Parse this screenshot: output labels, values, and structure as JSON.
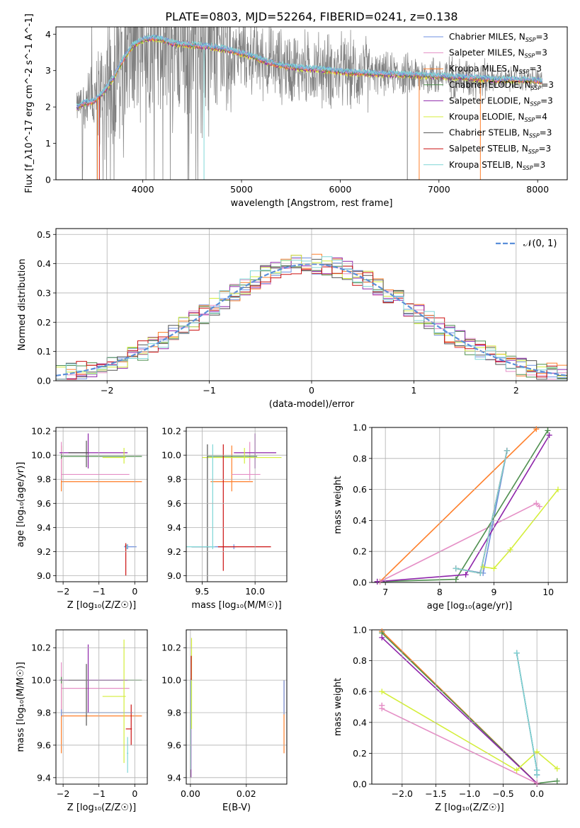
{
  "figure_title": "PLATE=0803, MJD=52264, FIBERID=0241, z=0.138",
  "colors": {
    "chabrier_miles": "#6d8fe0",
    "salpeter_miles": "#e58fc6",
    "kroupa_miles": "#ff7f2a",
    "chabrier_elodie": "#4f8f4f",
    "salpeter_elodie": "#8e24aa",
    "kroupa_elodie": "#d4ee3a",
    "chabrier_stelib": "#555555",
    "salpeter_stelib": "#cc1111",
    "kroupa_stelib": "#7fd6d6",
    "gray_data": "#808080",
    "teal": "#5aa8a8"
  },
  "chart_data": [
    {
      "id": "spectrum",
      "type": "line",
      "xlabel": "wavelength [Angstrom, rest frame]",
      "ylabel": "Flux [f_λ10^-17 erg cm^-2 s^-1 A^-1]",
      "xlim": [
        3120,
        8300
      ],
      "ylim": [
        0,
        4.2
      ],
      "xticks": [
        4000,
        5000,
        6000,
        7000,
        8000
      ],
      "yticks": [
        0,
        1,
        2,
        3,
        4
      ],
      "legend_position": "top-right",
      "legend": [
        {
          "label": "Chabrier MILES, N_SSP=3",
          "color_key": "chabrier_miles"
        },
        {
          "label": "Salpeter MILES, N_SSP=3",
          "color_key": "salpeter_miles"
        },
        {
          "label": "Kroupa MILES, N_SSP=3",
          "color_key": "kroupa_miles"
        },
        {
          "label": "Chabrier ELODIE, N_SSP=3",
          "color_key": "chabrier_elodie"
        },
        {
          "label": "Salpeter ELODIE, N_SSP=3",
          "color_key": "salpeter_elodie"
        },
        {
          "label": "Kroupa ELODIE, N_SSP=4",
          "color_key": "kroupa_elodie"
        },
        {
          "label": "Chabrier STELIB, N_SSP=3",
          "color_key": "chabrier_stelib"
        },
        {
          "label": "Salpeter STELIB, N_SSP=3",
          "color_key": "salpeter_stelib"
        },
        {
          "label": "Kroupa STELIB, N_SSP=3",
          "color_key": "kroupa_stelib"
        }
      ],
      "continuum": [
        [
          3330,
          2.0
        ],
        [
          3400,
          2.1
        ],
        [
          3500,
          2.15
        ],
        [
          3600,
          2.4
        ],
        [
          3700,
          2.8
        ],
        [
          3800,
          3.3
        ],
        [
          3900,
          3.7
        ],
        [
          4000,
          3.85
        ],
        [
          4100,
          3.9
        ],
        [
          4200,
          3.85
        ],
        [
          4300,
          3.75
        ],
        [
          4500,
          3.7
        ],
        [
          4700,
          3.65
        ],
        [
          4900,
          3.55
        ],
        [
          5100,
          3.4
        ],
        [
          5300,
          3.2
        ],
        [
          5500,
          3.1
        ],
        [
          5700,
          3.05
        ],
        [
          5900,
          3.0
        ],
        [
          6100,
          2.95
        ],
        [
          6300,
          2.92
        ],
        [
          6500,
          2.9
        ],
        [
          6700,
          2.88
        ],
        [
          7000,
          2.85
        ],
        [
          7300,
          2.8
        ],
        [
          7600,
          2.75
        ],
        [
          7900,
          2.75
        ],
        [
          8050,
          2.7
        ]
      ]
    },
    {
      "id": "residual_histogram",
      "type": "line",
      "xlabel": "(data-model)/error",
      "ylabel": "Normed distribution",
      "xlim": [
        -2.5,
        2.5
      ],
      "ylim": [
        0,
        0.52
      ],
      "xticks": [
        -2,
        -1,
        0,
        1,
        2
      ],
      "yticks": [
        0.0,
        0.1,
        0.2,
        0.3,
        0.4,
        0.5
      ],
      "legend_label": "𝒩(0, 1)",
      "legend_position": "top-right",
      "gaussian": {
        "mean": 0,
        "sigma": 1
      },
      "bin_width": 0.1
    },
    {
      "id": "age_vs_Z",
      "type": "scatter",
      "xlabel": "Z [log₁₀(Z/Z☉)]",
      "ylabel": "age  [log₁₀(age/yr)]",
      "xlim": [
        -2.2,
        0.35
      ],
      "ylim": [
        8.95,
        10.23
      ],
      "xticks": [
        -2,
        -1,
        0
      ],
      "yticks": [
        9.0,
        9.2,
        9.4,
        9.6,
        9.8,
        10.0,
        10.2
      ],
      "points": [
        {
          "c": "kroupa_miles",
          "x": -2.05,
          "y": 9.78,
          "xerr": [
            0,
            2.25
          ],
          "yerr": [
            0.08,
            0.3
          ]
        },
        {
          "c": "salpeter_miles",
          "x": -2.05,
          "y": 9.84,
          "xerr": [
            0,
            1.9
          ],
          "yerr": [
            0.05,
            0.27
          ]
        },
        {
          "c": "chabrier_miles",
          "x": -0.2,
          "y": 9.24,
          "xerr": [
            0.1,
            0.25
          ],
          "yerr": [
            0.02,
            0.02
          ]
        },
        {
          "c": "chabrier_elodie",
          "x": -2.05,
          "y": 9.99,
          "xerr": [
            0,
            2.25
          ],
          "yerr": [
            0.02,
            0.02
          ]
        },
        {
          "c": "salpeter_elodie",
          "x": -1.3,
          "y": 10.02,
          "xerr": [
            0.8,
            1.1
          ],
          "yerr": [
            0.13,
            0.16
          ]
        },
        {
          "c": "kroupa_elodie",
          "x": -0.3,
          "y": 9.98,
          "xerr": [
            0.6,
            0.05
          ],
          "yerr": [
            0.05,
            0.08
          ]
        },
        {
          "c": "chabrier_stelib",
          "x": -1.35,
          "y": 10.02,
          "xerr": [
            0.5,
            0.05
          ],
          "yerr": [
            0.12,
            0.1
          ]
        },
        {
          "c": "salpeter_stelib",
          "x": -0.25,
          "y": 9.25,
          "xerr": [
            0.02,
            0.02
          ],
          "yerr": [
            0.25,
            0.02
          ]
        },
        {
          "c": "kroupa_stelib",
          "x": -0.22,
          "y": 9.24,
          "xerr": [
            0.02,
            0.02
          ],
          "yerr": [
            0.02,
            0.02
          ]
        }
      ]
    },
    {
      "id": "age_vs_mass",
      "type": "scatter",
      "xlabel": "mass [log₁₀(M/M☉)]",
      "ylabel": "",
      "xlim": [
        9.35,
        10.3
      ],
      "ylim": [
        8.95,
        10.23
      ],
      "xticks": [
        9.5,
        10.0
      ],
      "yticks": [
        9.0,
        9.2,
        9.4,
        9.6,
        9.8,
        10.0,
        10.2
      ],
      "points": [
        {
          "c": "kroupa_miles",
          "x": 9.78,
          "y": 9.78,
          "xerr": [
            0.2,
            0.2
          ],
          "yerr": [
            0.08,
            0.3
          ]
        },
        {
          "c": "salpeter_miles",
          "x": 9.95,
          "y": 9.84,
          "xerr": [
            0.17,
            0.1
          ],
          "yerr": [
            0.05,
            0.27
          ]
        },
        {
          "c": "chabrier_miles",
          "x": 9.8,
          "y": 9.24,
          "xerr": [
            0.4,
            0.02
          ],
          "yerr": [
            0.02,
            0.02
          ]
        },
        {
          "c": "chabrier_elodie",
          "x": 10.0,
          "y": 9.99,
          "xerr": [
            0.45,
            0.02
          ],
          "yerr": [
            0.02,
            0.02
          ]
        },
        {
          "c": "salpeter_elodie",
          "x": 10.0,
          "y": 10.02,
          "xerr": [
            0.2,
            0.2
          ],
          "yerr": [
            0.13,
            0.16
          ]
        },
        {
          "c": "kroupa_elodie",
          "x": 9.9,
          "y": 9.98,
          "xerr": [
            0.4,
            0.35
          ],
          "yerr": [
            0.05,
            0.08
          ]
        },
        {
          "c": "chabrier_stelib",
          "x": 9.55,
          "y": 9.24,
          "xerr": [
            0.15,
            0.02
          ],
          "yerr": [
            0.3,
            0.85
          ]
        },
        {
          "c": "salpeter_stelib",
          "x": 9.7,
          "y": 9.24,
          "xerr": [
            0.05,
            0.45
          ],
          "yerr": [
            0.2,
            0.85
          ]
        },
        {
          "c": "kroupa_stelib",
          "x": 9.6,
          "y": 9.24,
          "xerr": [
            0.25,
            0.02
          ],
          "yerr": [
            0.02,
            0.85
          ]
        }
      ]
    },
    {
      "id": "mass_weight_vs_age",
      "type": "line",
      "xlabel": "age  [log₁₀(age/yr)]",
      "ylabel": "mass weight",
      "xlim": [
        6.75,
        10.35
      ],
      "ylim": [
        0,
        1
      ],
      "xticks": [
        7,
        8,
        9,
        10
      ],
      "yticks": [
        0.0,
        0.2,
        0.4,
        0.6,
        0.8,
        1.0
      ],
      "series": [
        {
          "c": "kroupa_miles",
          "x": [
            6.9,
            9.78
          ],
          "y": [
            0.005,
            0.99
          ]
        },
        {
          "c": "salpeter_miles",
          "x": [
            6.9,
            9.78,
            9.84
          ],
          "y": [
            0.005,
            0.51,
            0.49
          ]
        },
        {
          "c": "chabrier_miles",
          "x": [
            8.3,
            8.8,
            9.24
          ],
          "y": [
            0.09,
            0.06,
            0.85
          ]
        },
        {
          "c": "chabrier_elodie",
          "x": [
            6.85,
            8.3,
            9.99
          ],
          "y": [
            0.005,
            0.02,
            0.98
          ]
        },
        {
          "c": "salpeter_elodie",
          "x": [
            6.85,
            8.48,
            10.02
          ],
          "y": [
            0.005,
            0.05,
            0.95
          ]
        },
        {
          "c": "kroupa_elodie",
          "x": [
            8.8,
            9.0,
            9.3,
            10.18
          ],
          "y": [
            0.1,
            0.09,
            0.21,
            0.6
          ]
        },
        {
          "c": "chabrier_stelib",
          "x": [
            8.3,
            8.75,
            9.24
          ],
          "y": [
            0.09,
            0.06,
            0.85
          ]
        },
        {
          "c": "salpeter_stelib",
          "x": [
            8.3,
            8.75,
            9.24
          ],
          "y": [
            0.09,
            0.06,
            0.85
          ]
        },
        {
          "c": "kroupa_stelib",
          "x": [
            8.3,
            8.75,
            9.24
          ],
          "y": [
            0.09,
            0.06,
            0.85
          ]
        }
      ]
    },
    {
      "id": "mass_vs_Z",
      "type": "scatter",
      "xlabel": "Z [log₁₀(Z/Z☉)]",
      "ylabel": "mass [log₁₀(M/M☉)]",
      "xlim": [
        -2.2,
        0.35
      ],
      "ylim": [
        9.36,
        10.31
      ],
      "xticks": [
        -2,
        -1,
        0
      ],
      "yticks": [
        9.4,
        9.6,
        9.8,
        10.0,
        10.2
      ],
      "points": [
        {
          "c": "kroupa_miles",
          "x": -2.05,
          "y": 9.78,
          "xerr": [
            0,
            2.25
          ],
          "yerr": [
            0.23,
            0.23
          ]
        },
        {
          "c": "salpeter_miles",
          "x": -2.05,
          "y": 9.95,
          "xerr": [
            0,
            1.9
          ],
          "yerr": [
            0.17,
            0.16
          ]
        },
        {
          "c": "chabrier_miles",
          "x": -2.05,
          "y": 9.8,
          "xerr": [
            0,
            2.0
          ],
          "yerr": [
            0.02,
            0.02
          ]
        },
        {
          "c": "chabrier_elodie",
          "x": -2.05,
          "y": 10.0,
          "xerr": [
            0,
            2.25
          ],
          "yerr": [
            0.02,
            0.02
          ]
        },
        {
          "c": "salpeter_elodie",
          "x": -1.3,
          "y": 10.0,
          "xerr": [
            0.8,
            1.1
          ],
          "yerr": [
            0.2,
            0.22
          ]
        },
        {
          "c": "kroupa_elodie",
          "x": -0.3,
          "y": 9.9,
          "xerr": [
            0.6,
            0.05
          ],
          "yerr": [
            0.41,
            0.35
          ]
        },
        {
          "c": "chabrier_stelib",
          "x": -1.35,
          "y": 10.0,
          "xerr": [
            0.5,
            0.05
          ],
          "yerr": [
            0.28,
            0.1
          ]
        },
        {
          "c": "salpeter_stelib",
          "x": -0.1,
          "y": 9.7,
          "xerr": [
            0.15,
            0.02
          ],
          "yerr": [
            0.1,
            0.15
          ]
        },
        {
          "c": "kroupa_stelib",
          "x": -0.2,
          "y": 9.55,
          "xerr": [
            0.02,
            0.02
          ],
          "yerr": [
            0.12,
            0.1
          ]
        }
      ]
    },
    {
      "id": "mass_vs_ebv",
      "type": "scatter",
      "xlabel": "E(B-V)",
      "ylabel": "",
      "xlim": [
        -0.0015,
        0.0345
      ],
      "ylim": [
        9.36,
        10.31
      ],
      "xticks": [
        0.0,
        0.02
      ],
      "xticklabels": [
        "0.00",
        "0.02"
      ],
      "yticks": [
        9.4,
        9.6,
        9.8,
        10.0,
        10.2
      ],
      "points": [
        {
          "c": "kroupa_miles",
          "x": 0.0335,
          "y": 9.78,
          "xerr": [
            0,
            0
          ],
          "yerr": [
            0.23,
            0.22
          ]
        },
        {
          "c": "chabrier_miles",
          "x": 0.0335,
          "y": 9.82,
          "xerr": [
            0,
            0
          ],
          "yerr": [
            0.03,
            0.18
          ]
        },
        {
          "c": "salpeter_miles",
          "x": 0.0003,
          "y": 9.95,
          "xerr": [
            0,
            0
          ],
          "yerr": [
            0.17,
            0.16
          ]
        },
        {
          "c": "chabrier_elodie",
          "x": 0.0001,
          "y": 10.0,
          "xerr": [
            0,
            0
          ],
          "yerr": [
            0.6,
            0.01
          ]
        },
        {
          "c": "salpeter_elodie",
          "x": 0.0002,
          "y": 9.6,
          "xerr": [
            0,
            0
          ],
          "yerr": [
            0.2,
            0.4
          ]
        },
        {
          "c": "kroupa_elodie",
          "x": 0.0004,
          "y": 10.0,
          "xerr": [
            0,
            0
          ],
          "yerr": [
            0.3,
            0.26
          ]
        },
        {
          "c": "chabrier_stelib",
          "x": 0.0,
          "y": 9.7,
          "xerr": [
            0,
            0
          ],
          "yerr": [
            0.3,
            0.3
          ]
        },
        {
          "c": "salpeter_stelib",
          "x": 0.0003,
          "y": 10.05,
          "xerr": [
            0,
            0
          ],
          "yerr": [
            0.05,
            0.1
          ]
        },
        {
          "c": "kroupa_stelib",
          "x": 0.0001,
          "y": 9.9,
          "xerr": [
            0,
            0
          ],
          "yerr": [
            0.45,
            0.1
          ]
        }
      ]
    },
    {
      "id": "mass_weight_vs_Z",
      "type": "line",
      "xlabel": "Z [log₁₀(Z/Z☉)]",
      "ylabel": "mass weight",
      "xlim": [
        -2.45,
        0.45
      ],
      "ylim": [
        0,
        1
      ],
      "xticks": [
        -2.0,
        -1.5,
        -1.0,
        -0.5,
        0.0
      ],
      "xticklabels": [
        "−2.0",
        "−1.5",
        "−1.0",
        "−0.5",
        "0.0"
      ],
      "yticks": [
        0.0,
        0.2,
        0.4,
        0.6,
        0.8,
        1.0
      ],
      "series": [
        {
          "c": "kroupa_miles",
          "x": [
            -2.3,
            0.0
          ],
          "y": [
            0.99,
            0.005
          ]
        },
        {
          "c": "chabrier_elodie",
          "x": [
            -2.3,
            0.0,
            0.3
          ],
          "y": [
            0.98,
            0.005,
            0.02
          ]
        },
        {
          "c": "salpeter_elodie",
          "x": [
            -2.3,
            0.0
          ],
          "y": [
            0.95,
            0.005
          ]
        },
        {
          "c": "salpeter_miles",
          "x": [
            -2.3,
            0.0
          ],
          "y": [
            0.49,
            0.005
          ]
        },
        {
          "c": "salpeter_miles",
          "x": [
            -2.3,
            -2.3
          ],
          "y": [
            0.51,
            0.51
          ]
        },
        {
          "c": "kroupa_elodie",
          "x": [
            -2.3,
            -0.3,
            0.0,
            0.3
          ],
          "y": [
            0.6,
            0.09,
            0.21,
            0.1
          ]
        },
        {
          "c": "chabrier_miles",
          "x": [
            -0.3,
            0.0,
            0.0
          ],
          "y": [
            0.85,
            0.09,
            0.06
          ]
        },
        {
          "c": "chabrier_stelib",
          "x": [
            -0.3,
            0.0,
            0.0
          ],
          "y": [
            0.85,
            0.09,
            0.06
          ]
        },
        {
          "c": "kroupa_stelib",
          "x": [
            -0.3,
            0.0,
            0.0
          ],
          "y": [
            0.85,
            0.09,
            0.06
          ]
        }
      ]
    }
  ]
}
